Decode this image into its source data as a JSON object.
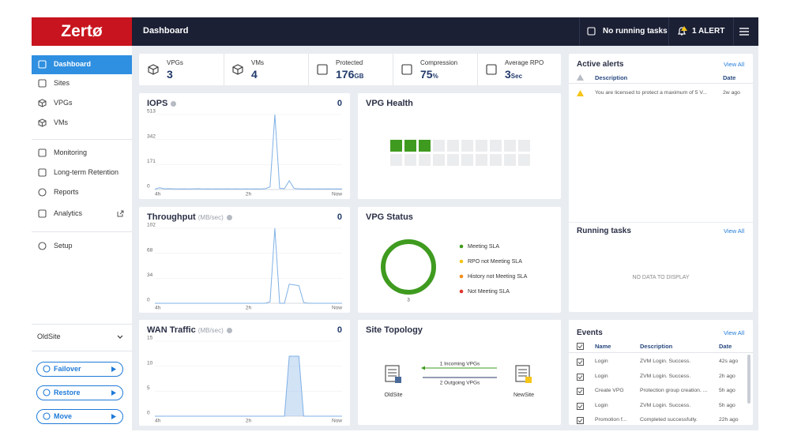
{
  "header": {
    "logo": "Zertø",
    "page": "Dashboard",
    "tasks": "No running tasks",
    "alerts": "1 ALERT"
  },
  "nav": {
    "items": [
      "Dashboard",
      "Sites",
      "VPGs",
      "VMs",
      "Monitoring",
      "Long-term Retention",
      "Reports",
      "Analytics",
      "Setup"
    ],
    "active": 0,
    "site": "OldSite",
    "actions": [
      "Failover",
      "Restore",
      "Move"
    ]
  },
  "stats": [
    {
      "label": "VPGs",
      "value": 3
    },
    {
      "label": "VMs",
      "value": 4
    },
    {
      "label": "Protected",
      "value": 176,
      "unit": "GB"
    },
    {
      "label": "Compression",
      "value": 75,
      "unit": "%"
    },
    {
      "label": "Average RPO",
      "value": 3,
      "unit": "Sec"
    }
  ],
  "charts": [
    {
      "type": "line",
      "title": "IOPS",
      "current": 0,
      "ylim": [
        0,
        513
      ],
      "yticks": [
        0,
        171,
        342,
        513
      ],
      "xticks": [
        "4h",
        "2h",
        "Now"
      ],
      "color": "#7fb0e6",
      "values": [
        3,
        12,
        5,
        6,
        5,
        4,
        5,
        4,
        5,
        6,
        4,
        5,
        4,
        5,
        4,
        5,
        4,
        5,
        4,
        5,
        4,
        5,
        4,
        6,
        18,
        513,
        8,
        6,
        60,
        7,
        5,
        4,
        5,
        4,
        5,
        4,
        5,
        4,
        5,
        4
      ]
    },
    {
      "type": "line",
      "title": "Throughput",
      "unit": "(MB/sec)",
      "current": 0,
      "ylim": [
        0,
        102
      ],
      "yticks": [
        0,
        34,
        68,
        102
      ],
      "xticks": [
        "4h",
        "2h",
        "Now"
      ],
      "color": "#7fb0e6",
      "values": [
        0,
        0,
        0,
        0,
        0,
        0,
        0,
        0,
        0,
        0,
        0,
        0,
        0,
        0,
        0,
        0,
        0,
        0,
        0,
        0,
        0,
        0,
        0,
        0,
        2,
        102,
        0,
        0,
        26,
        25,
        24,
        1,
        0,
        0,
        0,
        0,
        0,
        0,
        0,
        0
      ]
    },
    {
      "type": "area",
      "title": "WAN Traffic",
      "unit": "(MB/sec)",
      "current": 0,
      "ylim": [
        0,
        15
      ],
      "yticks": [
        0,
        5,
        10,
        15
      ],
      "xticks": [
        "4h",
        "2h",
        "Now"
      ],
      "color": "#7fb0e6",
      "values": [
        0,
        0,
        0,
        0,
        0,
        0,
        0,
        0,
        0,
        0,
        0,
        0,
        0,
        0,
        0,
        0,
        0,
        0,
        0,
        0,
        0,
        0,
        0,
        0,
        0,
        0,
        0,
        0,
        12,
        12,
        12,
        0,
        0,
        0,
        0,
        0,
        0,
        0,
        0,
        0
      ]
    }
  ],
  "vpg_health": {
    "title": "VPG Health",
    "counts": [
      {
        "color": "#3f9b1f",
        "count": 3
      },
      {
        "color": "#ebecee",
        "count": 17
      }
    ]
  },
  "vpg_status": {
    "title": "VPG Status",
    "total": 3,
    "legend": [
      {
        "name": "Meeting SLA",
        "color": "#3f9b1f",
        "value": 3
      },
      {
        "name": "RPO not Meeting SLA",
        "color": "#f5c518",
        "value": 0
      },
      {
        "name": "History not Meeting SLA",
        "color": "#f28c1c",
        "value": 0
      },
      {
        "name": "Not Meeting SLA",
        "color": "#e0352b",
        "value": 0
      }
    ]
  },
  "topology": {
    "title": "Site Topology",
    "incoming": "1 Incoming VPGs",
    "outgoing": "2 Outgoing VPGs",
    "source": "OldSite",
    "target": "NewSite"
  },
  "alerts": {
    "title": "Active alerts",
    "view_all": "View All",
    "columns": [
      "Description",
      "Date"
    ],
    "rows": [
      [
        "You are licensed to protect a maximum of 5 V...",
        "2w ago"
      ]
    ]
  },
  "tasks": {
    "title": "Running tasks",
    "view_all": "View All",
    "empty": "NO DATA TO DISPLAY"
  },
  "events": {
    "title": "Events",
    "view_all": "View All",
    "columns": [
      "Name",
      "Description",
      "Date"
    ],
    "rows": [
      [
        "Login",
        "ZVM Login. Success.",
        "42s ago"
      ],
      [
        "Login",
        "ZVM Login. Success.",
        "2h ago"
      ],
      [
        "Create VPG",
        "Protection group creation. ...",
        "5h ago"
      ],
      [
        "Login",
        "ZVM Login. Success.",
        "5h ago"
      ],
      [
        "Promotion f...",
        "Completed successfully.",
        "22h ago"
      ]
    ]
  }
}
